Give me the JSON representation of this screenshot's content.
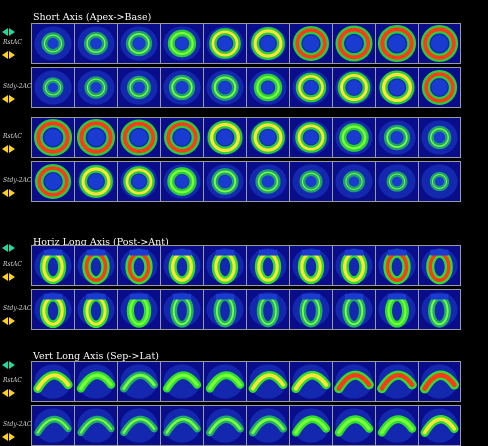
{
  "colors": {
    "arrow_green": "#22d8a0",
    "arrow_yellow": "#ffd21e",
    "border": "#9a9a9a"
  },
  "sections": [
    {
      "title": "Short Axis (Apex->Base)",
      "orientation": "short",
      "rows": [
        {
          "label": "RstAC",
          "intensities": [
            0.3,
            0.35,
            0.45,
            0.55,
            0.7,
            0.8,
            0.9,
            0.95,
            1.0,
            1.0
          ]
        },
        {
          "label": "Stdy-2AC",
          "intensities": [
            0.2,
            0.3,
            0.35,
            0.45,
            0.5,
            0.55,
            0.65,
            0.75,
            0.85,
            0.9
          ]
        }
      ]
    },
    {
      "title": "",
      "orientation": "short2",
      "rows": [
        {
          "label": "RstAC",
          "intensities": [
            1.0,
            1.0,
            0.95,
            0.9,
            0.85,
            0.8,
            0.7,
            0.6,
            0.45,
            0.35
          ]
        },
        {
          "label": "Stdy-2AC",
          "intensities": [
            0.9,
            0.8,
            0.7,
            0.6,
            0.5,
            0.4,
            0.3,
            0.25,
            0.2,
            0.15
          ]
        }
      ]
    },
    {
      "title": "Horiz Long Axis (Post->Ant)",
      "orientation": "hla",
      "rows": [
        {
          "label": "RstAC",
          "intensities": [
            0.8,
            0.9,
            0.9,
            0.85,
            0.8,
            0.8,
            0.8,
            0.85,
            0.9,
            0.9
          ]
        },
        {
          "label": "Stdy-2AC",
          "intensities": [
            0.8,
            0.75,
            0.6,
            0.5,
            0.45,
            0.4,
            0.45,
            0.5,
            0.55,
            0.5
          ]
        }
      ]
    },
    {
      "title": "Vert Long Axis (Sep->Lat)",
      "orientation": "vla",
      "rows": [
        {
          "label": "RstAC",
          "intensities": [
            0.8,
            0.6,
            0.5,
            0.55,
            0.6,
            0.7,
            0.8,
            0.9,
            0.9,
            1.0
          ]
        },
        {
          "label": "Stdy-2AC",
          "intensities": [
            0.3,
            0.3,
            0.35,
            0.4,
            0.45,
            0.5,
            0.55,
            0.6,
            0.6,
            0.7
          ]
        }
      ]
    }
  ]
}
